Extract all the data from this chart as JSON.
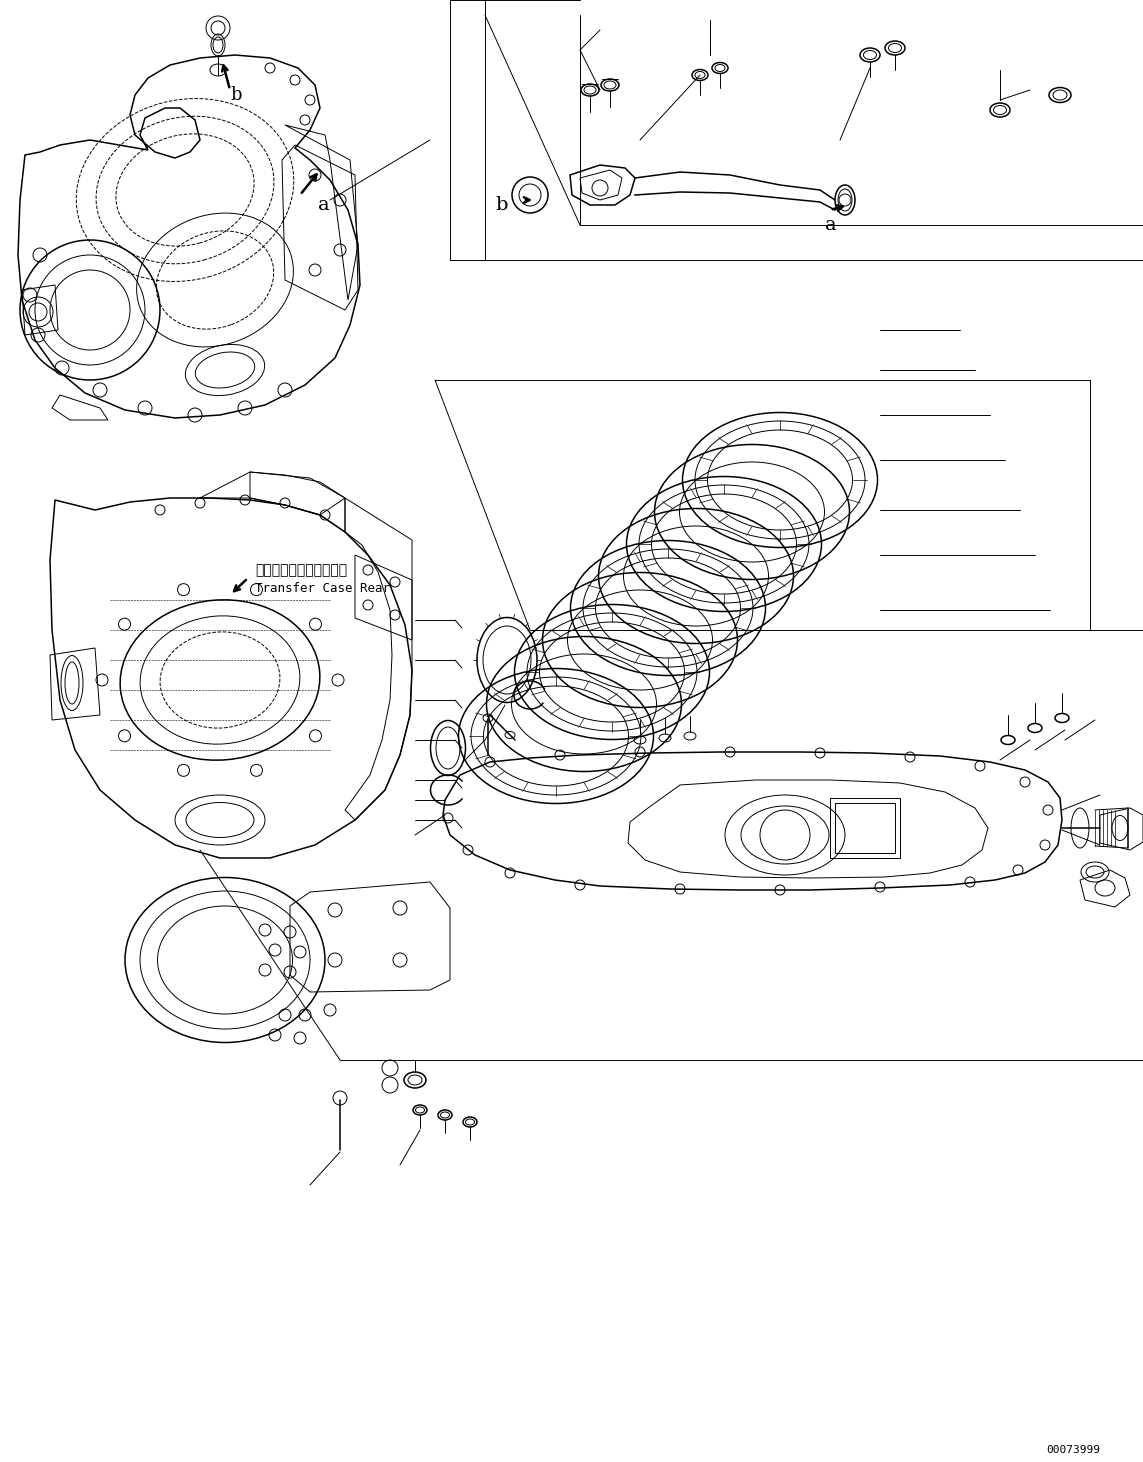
{
  "bg_color": "#ffffff",
  "line_color": "#000000",
  "fig_width": 11.43,
  "fig_height": 14.62,
  "dpi": 100,
  "part_number": "00073999",
  "transfer_case_label_jp": "トランスファケース後方",
  "transfer_case_label_en": "Transfer Case Rear",
  "lw_thin": 0.7,
  "lw_med": 1.1,
  "lw_thick": 1.8
}
